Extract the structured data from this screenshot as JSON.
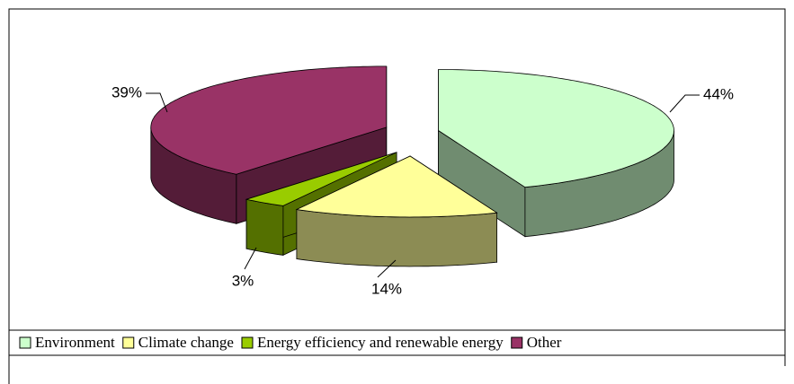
{
  "chart_data": {
    "type": "pie",
    "categories": [
      "Environment",
      "Climate change",
      "Energy efficiency and renewable energy",
      "Other"
    ],
    "values": [
      44,
      14,
      3,
      39
    ],
    "value_labels": [
      "44%",
      "14%",
      "3%",
      "39%"
    ],
    "colors": [
      "#ccffcc",
      "#ffff99",
      "#99cc00",
      "#993366"
    ],
    "legend": "bottom"
  }
}
